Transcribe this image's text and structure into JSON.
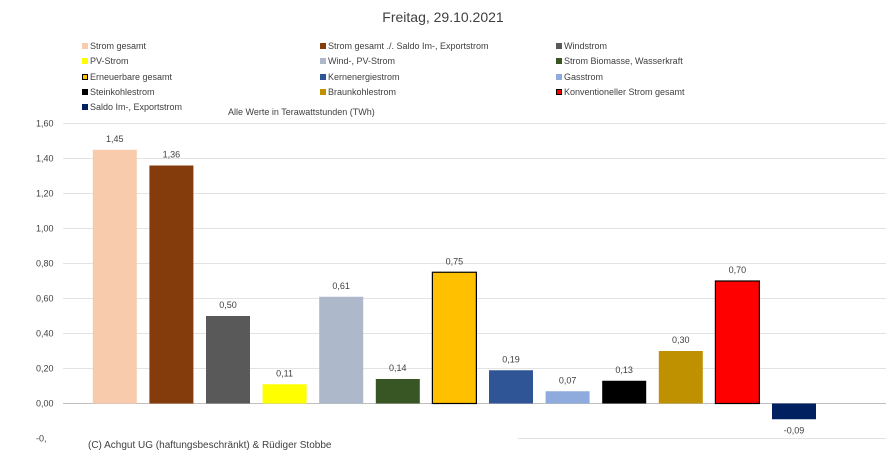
{
  "chart_data": {
    "type": "bar",
    "title": "Freitag, 29.10.2021",
    "subtitle": "Alle Werte in Terawattstunden (TWh)",
    "credit": "(C) Achgut UG (haftungsbeschränkt) & Rüdiger Stobbe",
    "ylim": [
      -0.2,
      1.6
    ],
    "yticks": [
      1.6,
      1.4,
      1.2,
      1.0,
      0.8,
      0.6,
      0.4,
      0.2,
      0.0
    ],
    "ytick_labels": [
      "1,60",
      "1,40",
      "1,20",
      "1,00",
      "0,80",
      "0,60",
      "0,40",
      "0,20",
      "0,00"
    ],
    "ytick_cut_label": "-0,",
    "grid": true,
    "legend_position": "top",
    "categories": [
      "Strom gesamt",
      "Strom gesamt ./. Saldo Im-, Exportstrom",
      "Windstrom",
      "PV-Strom",
      "Wind-, PV-Strom",
      "Strom Biomasse, Wasserkraft",
      "Erneuerbare gesamt",
      "Kernenergiestrom",
      "Gasstrom",
      "Steinkohlestrom",
      "Braunkohlestrom",
      "Konventioneller Strom gesamt",
      "Saldo Im-, Exportstrom"
    ],
    "values": [
      1.45,
      1.36,
      0.5,
      0.11,
      0.61,
      0.14,
      0.75,
      0.19,
      0.07,
      0.13,
      0.3,
      0.7,
      -0.09
    ],
    "value_labels": [
      "1,45",
      "1,36",
      "0,50",
      "0,11",
      "0,61",
      "0,14",
      "0,75",
      "0,19",
      "0,07",
      "0,13",
      "0,30",
      "0,70",
      "-0,09"
    ],
    "colors": [
      "#f8cbad",
      "#843c0c",
      "#595959",
      "#ffff00",
      "#adb9ca",
      "#375623",
      "#ffc000",
      "#2f5597",
      "#8faadc",
      "#000000",
      "#bf9000",
      "#ff0000",
      "#002060"
    ],
    "outlined": [
      false,
      false,
      false,
      false,
      false,
      false,
      true,
      false,
      false,
      false,
      false,
      true,
      false
    ]
  }
}
